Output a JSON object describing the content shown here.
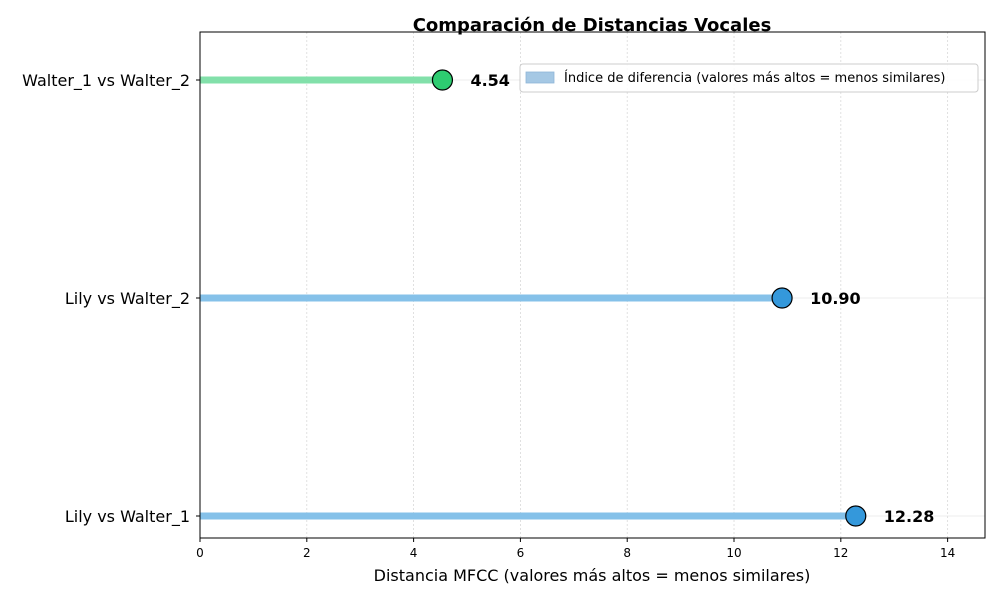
{
  "chart_data": {
    "type": "lollipop",
    "title": "Comparación de Distancias Vocales",
    "xlabel": "Distancia MFCC (valores más altos = menos similares)",
    "ylabel": "",
    "xlim": [
      0,
      14.7
    ],
    "xticks": [
      0,
      2,
      4,
      6,
      8,
      10,
      12,
      14
    ],
    "grid": true,
    "legend_position": "top-right",
    "legend": [
      {
        "label": "Índice de diferencia (valores más altos = menos similares)",
        "color": "#a5c8e4"
      }
    ],
    "categories": [
      "Lily vs Walter_1",
      "Lily vs Walter_2",
      "Walter_1 vs Walter_2"
    ],
    "values": [
      12.28,
      10.9,
      4.54
    ],
    "value_labels": [
      "12.28",
      "10.90",
      "4.54"
    ],
    "line_colors": [
      "#85c1e9",
      "#85c1e9",
      "#82e0aa"
    ],
    "marker_colors": [
      "#3498db",
      "#3498db",
      "#2ecc71"
    ]
  }
}
